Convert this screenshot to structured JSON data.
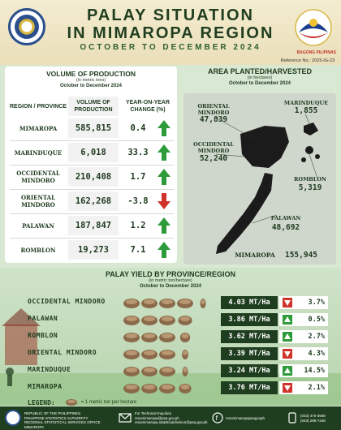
{
  "header": {
    "title_line1": "PALAY SITUATION",
    "title_line2": "IN MIMAROPA REGION",
    "period": "OCTOBER TO DECEMBER 2024",
    "brand_label": "BAGONG PILIPINAS",
    "reference_no": "Reference No.: 2025-IG-23"
  },
  "production": {
    "title": "VOLUME OF PRODUCTION",
    "unit": "(in metric tons)",
    "period": "October to December 2024",
    "headers": {
      "region": "REGION / PROVINCE",
      "volume": "VOLUME OF PRODUCTION",
      "change": "YEAR-ON-YEAR CHANGE (%)"
    },
    "rows": [
      {
        "name": "MIMAROPA",
        "volume": "585,815",
        "change": "0.4",
        "direction": "up"
      },
      {
        "name": "MARINDUQUE",
        "volume": "6,018",
        "change": "33.3",
        "direction": "up"
      },
      {
        "name": "OCCIDENTAL MINDORO",
        "volume": "210,408",
        "change": "1.7",
        "direction": "up"
      },
      {
        "name": "ORIENTAL MINDORO",
        "volume": "162,268",
        "change": "-3.8",
        "direction": "down"
      },
      {
        "name": "PALAWAN",
        "volume": "187,847",
        "change": "1.2",
        "direction": "up"
      },
      {
        "name": "ROMBLON",
        "volume": "19,273",
        "change": "7.1",
        "direction": "up"
      }
    ]
  },
  "area": {
    "title": "AREA PLANTED/HARVESTED",
    "unit": "(in hectares)",
    "period": "October to December 2024",
    "labels": [
      {
        "key": "oriental",
        "name": "ORIENTAL MINDORO",
        "value": "47,839"
      },
      {
        "key": "marinduque",
        "name": "MARINDUQUE",
        "value": "1,855"
      },
      {
        "key": "occidental",
        "name": "OCCIDENTAL MINDORO",
        "value": "52,240"
      },
      {
        "key": "romblon",
        "name": "ROMBLON",
        "value": "5,319"
      },
      {
        "key": "palawan",
        "name": "PALAWAN",
        "value": "48,692"
      },
      {
        "key": "mimaropa",
        "name": "MIMAROPA",
        "value": "155,945"
      }
    ]
  },
  "yield": {
    "title": "PALAY YIELD BY PROVINCE/REGION",
    "unit": "(in metric ton/hectare)",
    "period": "October to December 2024",
    "rows": [
      {
        "name": "OCCIDENTAL MINDORO",
        "value": 4.03,
        "display": "4.03 MT/Ha",
        "change": "3.7%",
        "direction": "down"
      },
      {
        "name": "PALAWAN",
        "value": 3.86,
        "display": "3.86 MT/Ha",
        "change": "0.5%",
        "direction": "up"
      },
      {
        "name": "ROMBLON",
        "value": 3.62,
        "display": "3.62 MT/Ha",
        "change": "2.7%",
        "direction": "up"
      },
      {
        "name": "ORIENTAL MINDORO",
        "value": 3.39,
        "display": "3.39 MT/Ha",
        "change": "4.3%",
        "direction": "down"
      },
      {
        "name": "MARINDUQUE",
        "value": 3.24,
        "display": "3.24 MT/Ha",
        "change": "14.5%",
        "direction": "up"
      },
      {
        "name": "MIMAROPA",
        "value": 3.76,
        "display": "3.76 MT/Ha",
        "change": "2.1%",
        "direction": "down"
      }
    ],
    "legend_label": "LEGEND:",
    "legend_text": "= 1 metric ton per hectare"
  },
  "footer": {
    "agency_line1": "REPUBLIC OF THE PHILIPPINES",
    "agency_line2": "PHILIPPINE STATISTICS AUTHORITY",
    "agency_line3": "REGIONAL STATISTICAL SERVICES OFFICE MIMAROPA",
    "tech_label": "For Technical Inquiries",
    "email1": "rssomimaropa@psa.gov.ph",
    "email2": "rssomimaropa.statisticaldivision@psa.gov.ph",
    "social": "rssomimaropapsagovph",
    "phone1": "(043) 470-0598",
    "phone2": "(043) 288-7448"
  },
  "colors": {
    "up": "#2e9b3a",
    "down": "#d0332a",
    "dark_green": "#1f3e1f"
  }
}
